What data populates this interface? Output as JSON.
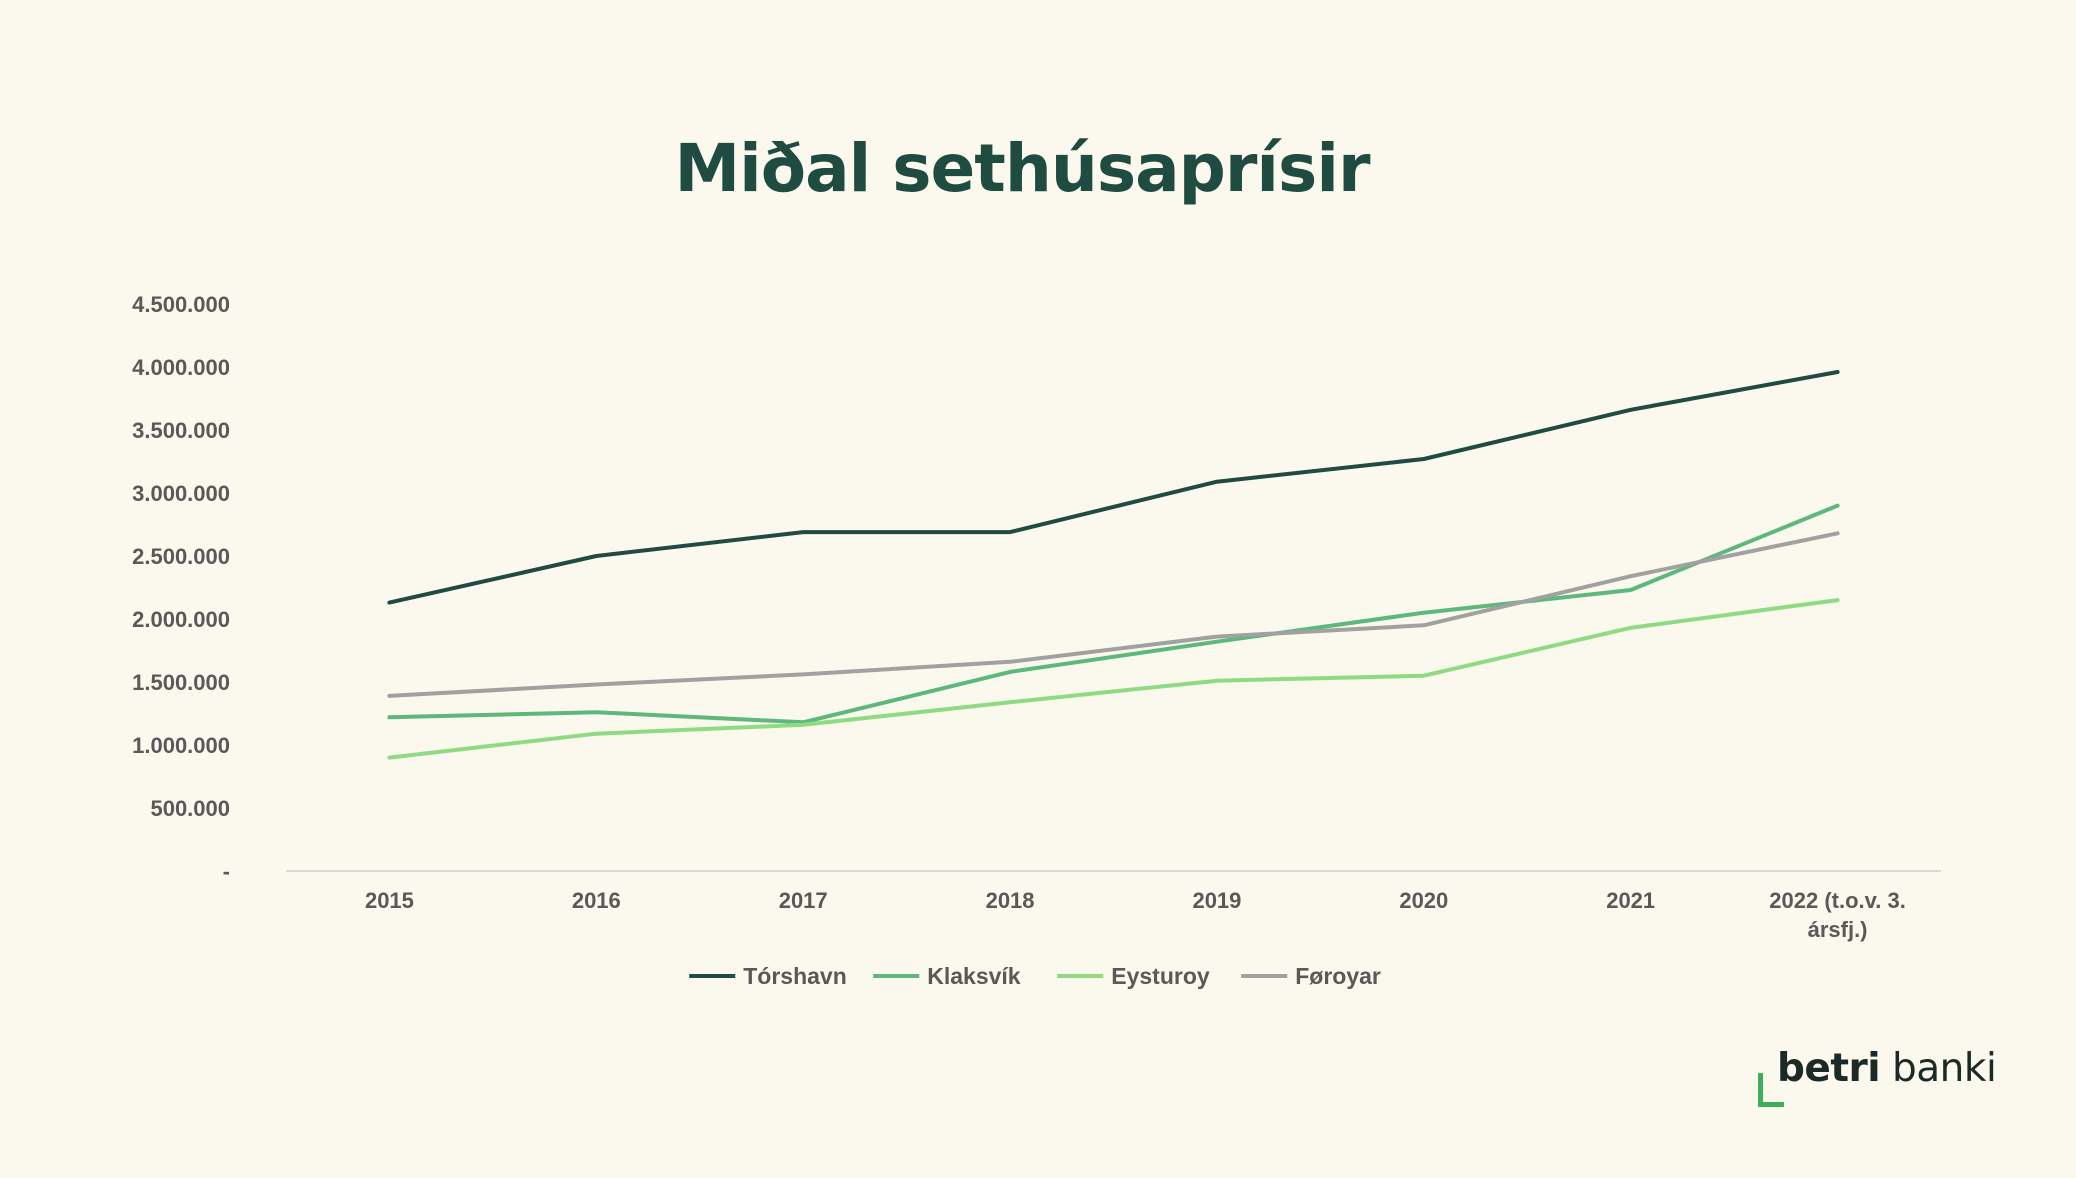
{
  "slide": {
    "title": "Miðal sethúsaprísir"
  },
  "brand": {
    "name_bold": "betri",
    "name_regular": " banki",
    "accent_color": "#3fae5b"
  },
  "chart_data": {
    "type": "line",
    "title": "",
    "xlabel": "",
    "ylabel": "",
    "categories": [
      "2015",
      "2016",
      "2017",
      "2018",
      "2019",
      "2020",
      "2021",
      "2022 (t.o.v. 3. ársfj.)"
    ],
    "category_lines": [
      [
        "2015"
      ],
      [
        "2016"
      ],
      [
        "2017"
      ],
      [
        "2018"
      ],
      [
        "2019"
      ],
      [
        "2020"
      ],
      [
        "2021"
      ],
      [
        "2022 (t.o.v. 3.",
        "ársfj.)"
      ]
    ],
    "ylim": [
      0,
      4500000
    ],
    "yticks": [
      0,
      500000,
      1000000,
      1500000,
      2000000,
      2500000,
      3000000,
      3500000,
      4000000,
      4500000
    ],
    "ytick_labels": [
      "-",
      "500.000",
      "1.000.000",
      "1.500.000",
      "2.000.000",
      "2.500.000",
      "3.000.000",
      "3.500.000",
      "4.000.000",
      "4.500.000"
    ],
    "grid": false,
    "legend_position": "bottom",
    "series": [
      {
        "name": "Tórshavn",
        "color": "#1f4b40",
        "values": [
          2130000,
          2500000,
          2690000,
          2690000,
          3090000,
          3270000,
          3660000,
          3960000
        ]
      },
      {
        "name": "Klaksvík",
        "color": "#5db87b",
        "values": [
          1220000,
          1260000,
          1180000,
          1580000,
          1820000,
          2050000,
          2230000,
          2900000
        ]
      },
      {
        "name": "Eysturoy",
        "color": "#8fdb84",
        "values": [
          900000,
          1090000,
          1160000,
          1340000,
          1510000,
          1550000,
          1930000,
          2150000
        ]
      },
      {
        "name": "Føroyar",
        "color": "#a1a1a1",
        "values": [
          1390000,
          1480000,
          1560000,
          1660000,
          1860000,
          1950000,
          2340000,
          2680000
        ]
      }
    ]
  }
}
